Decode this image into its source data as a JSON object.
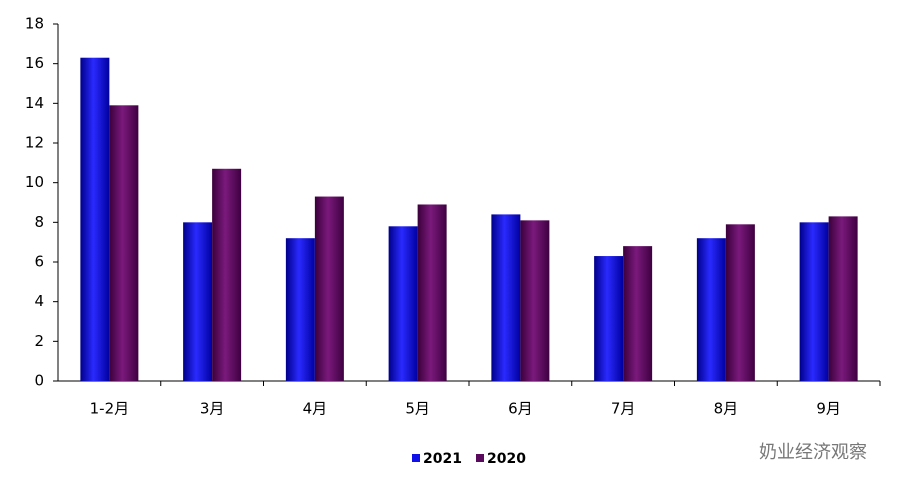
{
  "chart_data": {
    "type": "bar",
    "categories": [
      "1-2月",
      "3月",
      "4月",
      "5月",
      "6月",
      "7月",
      "8月",
      "9月"
    ],
    "series": [
      {
        "name": "2021",
        "color": "#1010e8",
        "values": [
          16.3,
          8.0,
          7.2,
          7.8,
          8.4,
          6.3,
          7.2,
          8.0
        ]
      },
      {
        "name": "2020",
        "color": "#5a0a5c",
        "values": [
          13.9,
          10.7,
          9.3,
          8.9,
          8.1,
          6.8,
          7.9,
          8.3
        ]
      }
    ],
    "ylim": [
      0,
      18
    ],
    "yticks": [
      0,
      2,
      4,
      6,
      8,
      10,
      12,
      14,
      16,
      18
    ],
    "legend": "bottom",
    "watermark": "奶业经济观察"
  }
}
